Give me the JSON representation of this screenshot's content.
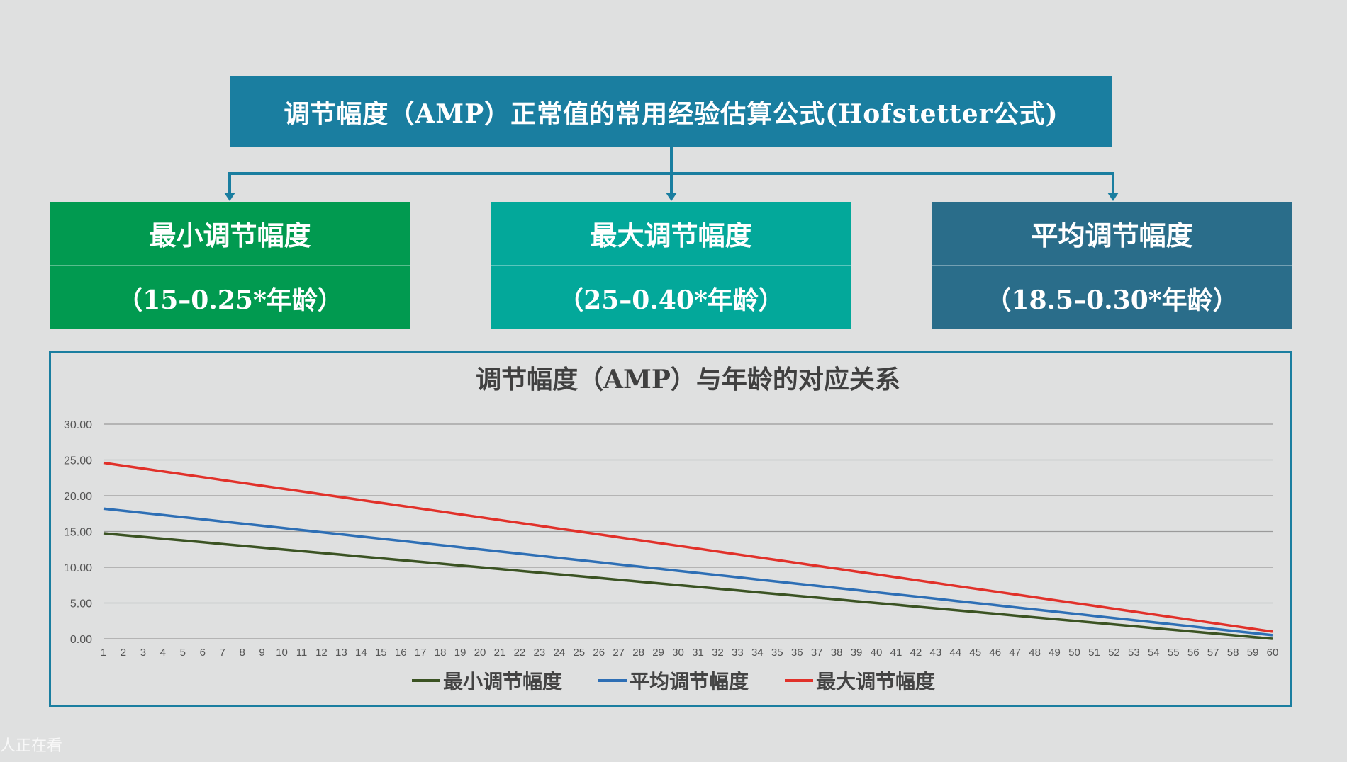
{
  "header": {
    "title": "调节幅度（AMP）正常值的常用经验估算公式(Hofstetter公式)"
  },
  "formulas": {
    "min": {
      "name": "最小调节幅度",
      "formula": "（15–0.25*年龄）"
    },
    "max": {
      "name": "最大调节幅度",
      "formula": "（25–0.40*年龄）"
    },
    "avg": {
      "name": "平均调节幅度",
      "formula": "（18.5–0.30*年龄）"
    }
  },
  "watermark": "人正在看",
  "colors": {
    "title_bg": "#1a7ea0",
    "min_box": "#019a50",
    "max_box": "#03a89a",
    "avg_box": "#2a6d8a"
  },
  "chart_data": {
    "type": "line",
    "title": "调节幅度（AMP）与年龄的对应关系",
    "xlabel": "",
    "ylabel": "",
    "ylim": [
      0,
      30
    ],
    "yticks": [
      "0.00",
      "5.00",
      "10.00",
      "15.00",
      "20.00",
      "25.00",
      "30.00"
    ],
    "grid": true,
    "legend": "bottom",
    "x": [
      1,
      2,
      3,
      4,
      5,
      6,
      7,
      8,
      9,
      10,
      11,
      12,
      13,
      14,
      15,
      16,
      17,
      18,
      19,
      20,
      21,
      22,
      23,
      24,
      25,
      26,
      27,
      28,
      29,
      30,
      31,
      32,
      33,
      34,
      35,
      36,
      37,
      38,
      39,
      40,
      41,
      42,
      43,
      44,
      45,
      46,
      47,
      48,
      49,
      50,
      51,
      52,
      53,
      54,
      55,
      56,
      57,
      58,
      59,
      60
    ],
    "series": [
      {
        "name": "最小调节幅度",
        "color": "#3b5323",
        "values": [
          14.75,
          14.5,
          14.25,
          14,
          13.75,
          13.5,
          13.25,
          13,
          12.75,
          12.5,
          12.25,
          12,
          11.75,
          11.5,
          11.25,
          11,
          10.75,
          10.5,
          10.25,
          10,
          9.75,
          9.5,
          9.25,
          9,
          8.75,
          8.5,
          8.25,
          8,
          7.75,
          7.5,
          7.25,
          7,
          6.75,
          6.5,
          6.25,
          6,
          5.75,
          5.5,
          5.25,
          5,
          4.75,
          4.5,
          4.25,
          4,
          3.75,
          3.5,
          3.25,
          3,
          2.75,
          2.5,
          2.25,
          2,
          1.75,
          1.5,
          1.25,
          1,
          0.75,
          0.5,
          0.25,
          0
        ]
      },
      {
        "name": "平均调节幅度",
        "color": "#2e6fb5",
        "values": [
          18.2,
          17.9,
          17.6,
          17.3,
          17,
          16.7,
          16.4,
          16.1,
          15.8,
          15.5,
          15.2,
          14.9,
          14.6,
          14.3,
          14,
          13.7,
          13.4,
          13.1,
          12.8,
          12.5,
          12.2,
          11.9,
          11.6,
          11.3,
          11,
          10.7,
          10.4,
          10.1,
          9.8,
          9.5,
          9.2,
          8.9,
          8.6,
          8.3,
          8,
          7.7,
          7.4,
          7.1,
          6.8,
          6.5,
          6.2,
          5.9,
          5.6,
          5.3,
          5,
          4.7,
          4.4,
          4.1,
          3.8,
          3.5,
          3.2,
          2.9,
          2.6,
          2.3,
          2,
          1.7,
          1.4,
          1.1,
          0.8,
          0.5
        ]
      },
      {
        "name": "最大调节幅度",
        "color": "#e1312a",
        "values": [
          24.6,
          24.2,
          23.8,
          23.4,
          23,
          22.6,
          22.2,
          21.8,
          21.4,
          21,
          20.6,
          20.2,
          19.8,
          19.4,
          19,
          18.6,
          18.2,
          17.8,
          17.4,
          17,
          16.6,
          16.2,
          15.8,
          15.4,
          15,
          14.6,
          14.2,
          13.8,
          13.4,
          13,
          12.6,
          12.2,
          11.8,
          11.4,
          11,
          10.6,
          10.2,
          9.8,
          9.4,
          9,
          8.6,
          8.2,
          7.8,
          7.4,
          7,
          6.6,
          6.2,
          5.8,
          5.4,
          5,
          4.6,
          4.2,
          3.8,
          3.4,
          3,
          2.6,
          2.2,
          1.8,
          1.4,
          1
        ]
      }
    ],
    "legend_order": [
      0,
      1,
      2
    ]
  }
}
